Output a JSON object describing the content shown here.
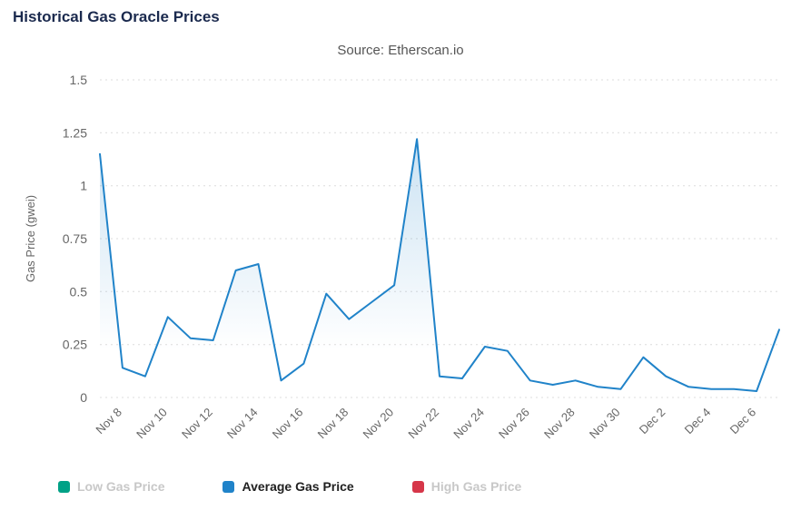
{
  "chart_data": {
    "type": "area",
    "title": "Historical Gas Oracle Prices",
    "subtitle": "Source: Etherscan.io",
    "xlabel": "",
    "ylabel": "Gas Price (gwei)",
    "ylim": [
      0,
      1.5
    ],
    "y_ticks": [
      0,
      0.25,
      0.5,
      0.75,
      1,
      1.25,
      1.5
    ],
    "grid": true,
    "legend_position": "bottom",
    "x_tick_labels": [
      "Nov 8",
      "Nov 10",
      "Nov 12",
      "Nov 14",
      "Nov 16",
      "Nov 18",
      "Nov 20",
      "Nov 22",
      "Nov 24",
      "Nov 26",
      "Nov 28",
      "Nov 30",
      "Dec 2",
      "Dec 4",
      "Dec 6"
    ],
    "categories": [
      "Nov 7",
      "Nov 8",
      "Nov 9",
      "Nov 10",
      "Nov 11",
      "Nov 12",
      "Nov 13",
      "Nov 14",
      "Nov 15",
      "Nov 16",
      "Nov 17",
      "Nov 18",
      "Nov 19",
      "Nov 20",
      "Nov 21",
      "Nov 22",
      "Nov 23",
      "Nov 24",
      "Nov 25",
      "Nov 26",
      "Nov 27",
      "Nov 28",
      "Nov 29",
      "Nov 30",
      "Dec 1",
      "Dec 2",
      "Dec 3",
      "Dec 4",
      "Dec 5",
      "Dec 6",
      "Dec 7"
    ],
    "series": [
      {
        "name": "Low Gas Price",
        "color": "#00a186",
        "visible": false,
        "values": []
      },
      {
        "name": "Average Gas Price",
        "color": "#2083c9",
        "visible": true,
        "values": [
          1.15,
          0.14,
          0.1,
          0.38,
          0.28,
          0.27,
          0.6,
          0.63,
          0.08,
          0.16,
          0.49,
          0.37,
          0.45,
          0.53,
          1.22,
          0.1,
          0.09,
          0.24,
          0.22,
          0.08,
          0.06,
          0.08,
          0.05,
          0.04,
          0.19,
          0.1,
          0.05,
          0.04,
          0.04,
          0.03,
          0.32
        ]
      },
      {
        "name": "High Gas Price",
        "color": "#d63649",
        "visible": false,
        "values": []
      }
    ],
    "axis_text_color": "#666666",
    "grid_color": "#dcdcdc"
  }
}
